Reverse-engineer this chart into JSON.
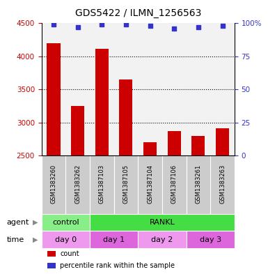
{
  "title": "GDS5422 / ILMN_1256563",
  "samples": [
    "GSM1383260",
    "GSM1383262",
    "GSM1387103",
    "GSM1387105",
    "GSM1387104",
    "GSM1387106",
    "GSM1383261",
    "GSM1383263"
  ],
  "counts": [
    4200,
    3250,
    4120,
    3650,
    2700,
    2870,
    2800,
    2920
  ],
  "percentile_ranks": [
    99,
    97,
    99,
    99,
    98,
    96,
    97,
    98
  ],
  "ylim_left": [
    2500,
    4500
  ],
  "yticks_left": [
    2500,
    3000,
    3500,
    4000,
    4500
  ],
  "ylim_right": [
    0,
    100
  ],
  "yticks_right": [
    0,
    25,
    50,
    75,
    100
  ],
  "ytick_right_labels": [
    "0",
    "25",
    "50",
    "75",
    "100%"
  ],
  "bar_color": "#cc0000",
  "dot_color": "#3333cc",
  "bar_width": 0.55,
  "agent_labels": [
    {
      "label": "control",
      "start": 0,
      "end": 2,
      "color": "#88ee88"
    },
    {
      "label": "RANKL",
      "start": 2,
      "end": 8,
      "color": "#44dd44"
    }
  ],
  "time_labels": [
    {
      "label": "day 0",
      "start": 0,
      "end": 2,
      "color": "#ee99ee"
    },
    {
      "label": "day 1",
      "start": 2,
      "end": 4,
      "color": "#dd66dd"
    },
    {
      "label": "day 2",
      "start": 4,
      "end": 6,
      "color": "#ee99ee"
    },
    {
      "label": "day 3",
      "start": 6,
      "end": 8,
      "color": "#dd66dd"
    }
  ],
  "legend_items": [
    {
      "label": "count",
      "color": "#cc0000"
    },
    {
      "label": "percentile rank within the sample",
      "color": "#3333cc"
    }
  ],
  "grid_color": "#000000",
  "grid_ticks": [
    3000,
    3500,
    4000
  ],
  "left_axis_color": "#cc0000",
  "right_axis_color": "#3333cc",
  "agent_row_label": "agent",
  "time_row_label": "time",
  "sample_bg_color": "#cccccc",
  "label_area_color": "#cccccc",
  "arrow_color": "#888888"
}
